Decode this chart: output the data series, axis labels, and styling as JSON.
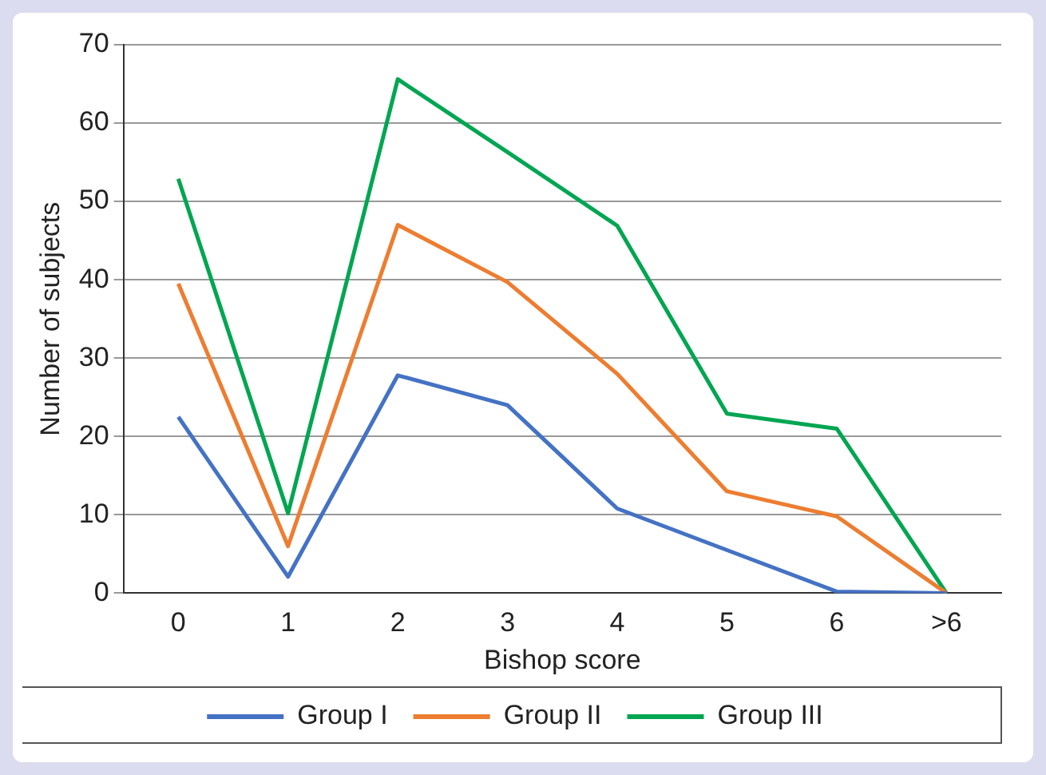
{
  "chart_data": {
    "type": "line",
    "xlabel": "Bishop score",
    "ylabel": "Number of subjects",
    "categories": [
      "0",
      "1",
      "2",
      "3",
      "4",
      "5",
      "6",
      ">6"
    ],
    "series": [
      {
        "name": "Group I",
        "color": "#4472c4",
        "values": [
          22.5,
          2.1,
          27.8,
          24,
          10.8,
          5.5,
          0.2,
          0
        ]
      },
      {
        "name": "Group II",
        "color": "#ed7d31",
        "values": [
          39.5,
          6,
          47,
          39.7,
          28,
          13,
          9.8,
          0
        ]
      },
      {
        "name": "Group III",
        "color": "#00a651",
        "values": [
          52.9,
          10.2,
          65.6,
          56.3,
          46.9,
          22.9,
          21,
          0
        ]
      }
    ],
    "ylim": [
      0,
      70
    ],
    "yticks": [
      0,
      10,
      20,
      30,
      40,
      50,
      60,
      70
    ],
    "grid": "y",
    "legend": "bottom",
    "marker": "none",
    "line_style": "solid"
  }
}
